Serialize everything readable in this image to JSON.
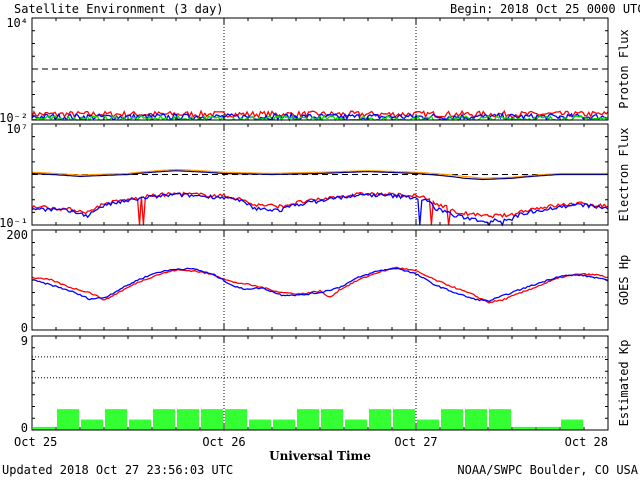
{
  "header": {
    "title": "Satellite Environment (3 day)",
    "begin_label": "Begin:",
    "begin_value": "2018 Oct 25 0000 UTC"
  },
  "footer": {
    "updated": "Updated 2018 Oct 27 23:56:03 UTC",
    "credit": "NOAA/SWPC Boulder, CO USA",
    "xlabel": "Universal Time"
  },
  "x_ticks": [
    "Oct 25",
    "Oct 26",
    "Oct 27",
    "Oct 28"
  ],
  "colors": {
    "red": "#ff0000",
    "blue": "#0000ff",
    "green": "#00dd00",
    "orange": "#ff9900",
    "navy": "#000080",
    "kp_fill": "#33ff33"
  },
  "chart_data": [
    {
      "type": "line",
      "ylabel": "Proton Flux",
      "scale": "log",
      "ylim": [
        0.01,
        10000
      ],
      "tick_labels": {
        "top": "10⁴",
        "bottom": "10⁻²"
      },
      "threshold": 10,
      "xlim_days": [
        0,
        3
      ],
      "series": [
        {
          "color": "red",
          "level": 0.022
        },
        {
          "color": "blue",
          "level": 0.0155
        },
        {
          "color": "green",
          "level": 0.0118
        }
      ]
    },
    {
      "type": "line",
      "ylabel": "Electron Flux",
      "scale": "log",
      "ylim": [
        0.1,
        10000000
      ],
      "tick_labels": {
        "top": "10⁷",
        "bottom": "10⁻¹"
      },
      "threshold": 1000,
      "series": [
        {
          "color": "orange",
          "points": [
            [
              0,
              1500
            ],
            [
              0.25,
              900
            ],
            [
              0.5,
              1200
            ],
            [
              0.75,
              2500
            ],
            [
              1.0,
              1500
            ],
            [
              1.25,
              1200
            ],
            [
              1.5,
              1500
            ],
            [
              1.75,
              2000
            ],
            [
              2.0,
              1500
            ],
            [
              2.25,
              700
            ],
            [
              2.35,
              500
            ],
            [
              2.5,
              600
            ],
            [
              2.75,
              1200
            ],
            [
              3.0,
              1200
            ]
          ]
        },
        {
          "color": "navy",
          "points": [
            [
              0,
              1200
            ],
            [
              0.25,
              700
            ],
            [
              0.5,
              1000
            ],
            [
              0.75,
              2000
            ],
            [
              1.0,
              1200
            ],
            [
              1.25,
              1000
            ],
            [
              1.5,
              1200
            ],
            [
              1.75,
              1700
            ],
            [
              2.0,
              1200
            ],
            [
              2.25,
              500
            ],
            [
              2.35,
              400
            ],
            [
              2.5,
              500
            ],
            [
              2.75,
              1000
            ],
            [
              3.0,
              1000
            ]
          ]
        },
        {
          "color": "red",
          "points": [
            [
              0,
              3
            ],
            [
              0.15,
              2
            ],
            [
              0.3,
              1
            ],
            [
              0.5,
              10
            ],
            [
              0.75,
              30
            ],
            [
              1.0,
              20
            ],
            [
              1.15,
              4
            ],
            [
              1.3,
              3
            ],
            [
              1.5,
              10
            ],
            [
              1.75,
              30
            ],
            [
              2.0,
              20
            ],
            [
              2.1,
              5
            ],
            [
              2.2,
              1
            ],
            [
              2.35,
              0.5
            ],
            [
              2.5,
              0.6
            ],
            [
              2.7,
              3
            ],
            [
              2.85,
              5
            ],
            [
              3.0,
              3
            ]
          ]
        },
        {
          "color": "blue",
          "points": [
            [
              0,
              2
            ],
            [
              0.15,
              1.5
            ],
            [
              0.3,
              0.5
            ],
            [
              0.5,
              8
            ],
            [
              0.75,
              25
            ],
            [
              1.0,
              15
            ],
            [
              1.15,
              2
            ],
            [
              1.3,
              1.5
            ],
            [
              1.5,
              8
            ],
            [
              1.75,
              25
            ],
            [
              2.0,
              15
            ],
            [
              2.1,
              2
            ],
            [
              2.2,
              0.5
            ],
            [
              2.35,
              0.2
            ],
            [
              2.5,
              0.3
            ],
            [
              2.7,
              2
            ],
            [
              2.85,
              4
            ],
            [
              3.0,
              2
            ]
          ]
        }
      ]
    },
    {
      "type": "line",
      "ylabel": "GOES Hp",
      "ylim": [
        0,
        200
      ],
      "tick_labels": {
        "top": "200",
        "bottom": "0"
      },
      "series": [
        {
          "color": "red",
          "points": [
            [
              0,
              105
            ],
            [
              0.1,
              100
            ],
            [
              0.2,
              85
            ],
            [
              0.3,
              75
            ],
            [
              0.38,
              60
            ],
            [
              0.45,
              75
            ],
            [
              0.55,
              95
            ],
            [
              0.65,
              110
            ],
            [
              0.75,
              120
            ],
            [
              0.85,
              118
            ],
            [
              0.95,
              110
            ],
            [
              1.05,
              95
            ],
            [
              1.1,
              93
            ],
            [
              1.2,
              85
            ],
            [
              1.3,
              75
            ],
            [
              1.4,
              72
            ],
            [
              1.5,
              78
            ],
            [
              1.55,
              65
            ],
            [
              1.6,
              80
            ],
            [
              1.7,
              100
            ],
            [
              1.8,
              115
            ],
            [
              1.9,
              125
            ],
            [
              2.0,
              118
            ],
            [
              2.1,
              100
            ],
            [
              2.2,
              85
            ],
            [
              2.3,
              70
            ],
            [
              2.38,
              55
            ],
            [
              2.45,
              60
            ],
            [
              2.55,
              75
            ],
            [
              2.65,
              90
            ],
            [
              2.75,
              105
            ],
            [
              2.85,
              112
            ],
            [
              2.95,
              110
            ],
            [
              3.0,
              105
            ]
          ]
        },
        {
          "color": "blue",
          "points": [
            [
              0,
              100
            ],
            [
              0.1,
              90
            ],
            [
              0.2,
              78
            ],
            [
              0.3,
              62
            ],
            [
              0.38,
              65
            ],
            [
              0.45,
              80
            ],
            [
              0.55,
              100
            ],
            [
              0.65,
              115
            ],
            [
              0.75,
              122
            ],
            [
              0.85,
              122
            ],
            [
              0.95,
              110
            ],
            [
              1.05,
              88
            ],
            [
              1.1,
              82
            ],
            [
              1.2,
              84
            ],
            [
              1.3,
              70
            ],
            [
              1.4,
              70
            ],
            [
              1.5,
              75
            ],
            [
              1.6,
              85
            ],
            [
              1.7,
              105
            ],
            [
              1.8,
              118
            ],
            [
              1.9,
              124
            ],
            [
              2.0,
              112
            ],
            [
              2.1,
              90
            ],
            [
              2.2,
              75
            ],
            [
              2.3,
              62
            ],
            [
              2.38,
              58
            ],
            [
              2.45,
              68
            ],
            [
              2.55,
              82
            ],
            [
              2.65,
              95
            ],
            [
              2.75,
              108
            ],
            [
              2.85,
              110
            ],
            [
              2.95,
              104
            ],
            [
              3.0,
              98
            ]
          ]
        }
      ]
    },
    {
      "type": "bar",
      "ylabel": "Estimated Kp",
      "ylim": [
        0,
        9
      ],
      "tick_labels": {
        "top": "9",
        "bottom": "0"
      },
      "gridlines": [
        5,
        7
      ],
      "bin_hours": 3,
      "values": [
        0.3,
        2,
        1,
        2,
        1,
        2,
        2,
        2,
        2,
        1,
        1,
        2,
        2,
        1,
        2,
        2,
        1,
        2,
        2,
        2,
        0.3,
        0.3,
        1,
        0
      ]
    }
  ]
}
